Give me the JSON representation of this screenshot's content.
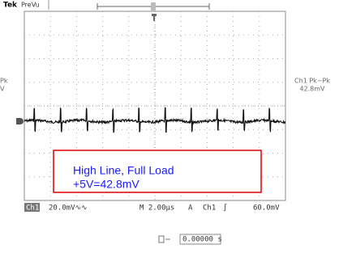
{
  "header": {
    "brand": "Tek",
    "mode": "PreVu"
  },
  "measurement_right": {
    "label": "Ch1 Pk−Pk",
    "value": "42.8mV"
  },
  "measurement_left": {
    "label": "Pk",
    "value": "V"
  },
  "annotation": {
    "line1": "High Line, Full Load",
    "line2": "+5V=42.8mV"
  },
  "status": {
    "channel": "Ch1",
    "scale": "20.0mV∿∿",
    "timebase": "M 2.00µs",
    "trigger_mode": "A",
    "trigger_channel": "Ch1",
    "trigger_slope": "∫",
    "trigger_level": "60.0mV"
  },
  "position": {
    "value": "0.00000 s"
  }
}
